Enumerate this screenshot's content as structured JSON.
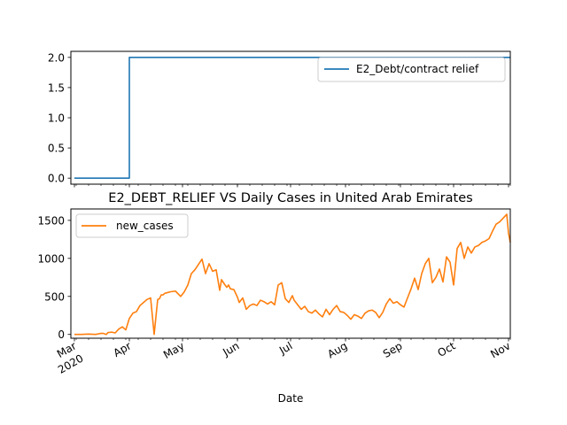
{
  "chart_data": [
    {
      "type": "line",
      "title": "",
      "xlabel": "",
      "ylabel": "",
      "ylim": [
        -0.1,
        2.1
      ],
      "yticks": [
        "0.0",
        "0.5",
        "1.0",
        "1.5",
        "2.0"
      ],
      "ytick_values": [
        0.0,
        0.5,
        1.0,
        1.5,
        2.0
      ],
      "legend": "top-right",
      "series": [
        {
          "name": "E2_Debt/contract relief",
          "color": "#1f77b4",
          "x": [
            "2020-03-01",
            "2020-04-01",
            "2020-04-01",
            "2020-11-02"
          ],
          "values": [
            0,
            0,
            2,
            2
          ]
        }
      ]
    },
    {
      "type": "line",
      "title": "E2_DEBT_RELIEF VS Daily Cases in United Arab Emirates",
      "xlabel": "Date",
      "ylabel": "",
      "ylim": [
        -50,
        1650
      ],
      "yticks": [
        "0",
        "500",
        "1000",
        "1500"
      ],
      "ytick_values": [
        0,
        500,
        1000,
        1500
      ],
      "legend": "top-left",
      "xticks": [
        {
          "date": "2020-03-01",
          "label": "Mar",
          "sublabel": "2020"
        },
        {
          "date": "2020-04-01",
          "label": "Apr",
          "sublabel": ""
        },
        {
          "date": "2020-05-01",
          "label": "May",
          "sublabel": ""
        },
        {
          "date": "2020-06-01",
          "label": "Jun",
          "sublabel": ""
        },
        {
          "date": "2020-07-01",
          "label": "Jul",
          "sublabel": ""
        },
        {
          "date": "2020-08-01",
          "label": "Aug",
          "sublabel": ""
        },
        {
          "date": "2020-09-01",
          "label": "Sep",
          "sublabel": ""
        },
        {
          "date": "2020-10-01",
          "label": "Oct",
          "sublabel": ""
        },
        {
          "date": "2020-11-01",
          "label": "Nov",
          "sublabel": ""
        }
      ],
      "series": [
        {
          "name": "new_cases",
          "color": "#ff7f0e",
          "x": [
            "2020-03-01",
            "2020-03-05",
            "2020-03-09",
            "2020-03-13",
            "2020-03-15",
            "2020-03-17",
            "2020-03-19",
            "2020-03-20",
            "2020-03-22",
            "2020-03-24",
            "2020-03-26",
            "2020-03-28",
            "2020-03-30",
            "2020-04-01",
            "2020-04-03",
            "2020-04-05",
            "2020-04-07",
            "2020-04-09",
            "2020-04-11",
            "2020-04-13",
            "2020-04-15",
            "2020-04-17",
            "2020-04-18",
            "2020-04-19",
            "2020-04-20",
            "2020-04-21",
            "2020-04-24",
            "2020-04-27",
            "2020-04-30",
            "2020-05-02",
            "2020-05-04",
            "2020-05-06",
            "2020-05-08",
            "2020-05-10",
            "2020-05-12",
            "2020-05-14",
            "2020-05-16",
            "2020-05-18",
            "2020-05-20",
            "2020-05-22",
            "2020-05-23",
            "2020-05-25",
            "2020-05-26",
            "2020-05-27",
            "2020-05-28",
            "2020-05-30",
            "2020-06-01",
            "2020-06-02",
            "2020-06-04",
            "2020-06-06",
            "2020-06-08",
            "2020-06-10",
            "2020-06-12",
            "2020-06-14",
            "2020-06-16",
            "2020-06-18",
            "2020-06-20",
            "2020-06-22",
            "2020-06-24",
            "2020-06-26",
            "2020-06-28",
            "2020-06-30",
            "2020-07-02",
            "2020-07-03",
            "2020-07-05",
            "2020-07-07",
            "2020-07-09",
            "2020-07-11",
            "2020-07-13",
            "2020-07-15",
            "2020-07-17",
            "2020-07-19",
            "2020-07-21",
            "2020-07-23",
            "2020-07-25",
            "2020-07-27",
            "2020-07-29",
            "2020-07-31",
            "2020-08-02",
            "2020-08-04",
            "2020-08-06",
            "2020-08-08",
            "2020-08-10",
            "2020-08-12",
            "2020-08-14",
            "2020-08-16",
            "2020-08-18",
            "2020-08-20",
            "2020-08-22",
            "2020-08-24",
            "2020-08-26",
            "2020-08-28",
            "2020-08-30",
            "2020-09-01",
            "2020-09-03",
            "2020-09-05",
            "2020-09-07",
            "2020-09-09",
            "2020-09-11",
            "2020-09-13",
            "2020-09-15",
            "2020-09-17",
            "2020-09-19",
            "2020-09-21",
            "2020-09-23",
            "2020-09-25",
            "2020-09-27",
            "2020-09-29",
            "2020-10-01",
            "2020-10-03",
            "2020-10-05",
            "2020-10-07",
            "2020-10-09",
            "2020-10-11",
            "2020-10-13",
            "2020-10-15",
            "2020-10-17",
            "2020-10-19",
            "2020-10-21",
            "2020-10-23",
            "2020-10-25",
            "2020-10-27",
            "2020-10-29",
            "2020-10-31",
            "2020-11-01",
            "2020-11-02"
          ],
          "values": [
            0,
            0,
            5,
            0,
            10,
            15,
            0,
            25,
            30,
            20,
            70,
            100,
            60,
            210,
            280,
            300,
            380,
            420,
            460,
            480,
            0,
            460,
            470,
            520,
            520,
            540,
            560,
            570,
            500,
            560,
            650,
            800,
            850,
            920,
            990,
            800,
            930,
            830,
            850,
            580,
            720,
            650,
            620,
            650,
            600,
            590,
            490,
            420,
            480,
            330,
            380,
            400,
            380,
            450,
            430,
            400,
            430,
            390,
            650,
            680,
            470,
            420,
            510,
            450,
            390,
            330,
            370,
            300,
            280,
            320,
            270,
            230,
            330,
            260,
            330,
            380,
            300,
            290,
            250,
            200,
            260,
            240,
            210,
            280,
            310,
            320,
            290,
            220,
            290,
            400,
            470,
            410,
            430,
            390,
            360,
            480,
            600,
            740,
            590,
            800,
            930,
            1000,
            680,
            750,
            860,
            690,
            1020,
            950,
            650,
            1130,
            1210,
            1000,
            1150,
            1070,
            1150,
            1170,
            1210,
            1230,
            1260,
            1360,
            1450,
            1480,
            1530,
            1580,
            1330,
            1210
          ]
        }
      ]
    }
  ]
}
